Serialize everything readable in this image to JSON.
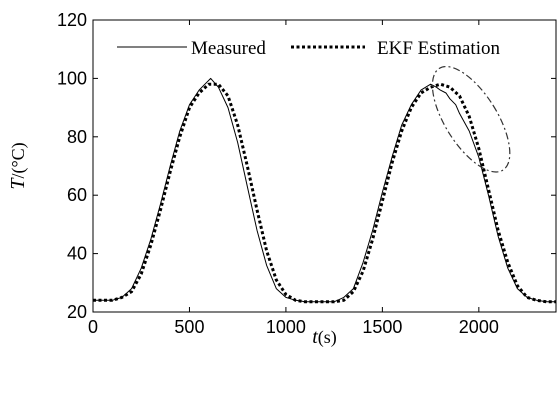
{
  "chart_data": {
    "type": "line",
    "title": "",
    "xlabel_var": "t",
    "xlabel_unit": "(s)",
    "ylabel_var": "T",
    "ylabel_unit": "/(°C)",
    "xlim": [
      0,
      2400
    ],
    "ylim": [
      20,
      120
    ],
    "xticks": [
      0,
      500,
      1000,
      1500,
      2000
    ],
    "yticks": [
      20,
      40,
      60,
      80,
      100,
      120
    ],
    "xtick_labels": [
      "0",
      "500",
      "1000",
      "1500",
      "2000"
    ],
    "ytick_labels": [
      "20",
      "40",
      "60",
      "80",
      "100",
      "120"
    ],
    "grid": false,
    "legend_position": "top",
    "series": [
      {
        "name": "Measured",
        "style": "solid",
        "color": "#000000",
        "x": [
          0,
          100,
          150,
          200,
          250,
          300,
          350,
          400,
          450,
          500,
          550,
          580,
          610,
          650,
          700,
          750,
          800,
          850,
          900,
          950,
          1000,
          1050,
          1100,
          1150,
          1200,
          1250,
          1300,
          1350,
          1400,
          1450,
          1500,
          1550,
          1600,
          1650,
          1700,
          1750,
          1780,
          1800,
          1830,
          1850,
          1880,
          1900,
          1950,
          2000,
          2050,
          2100,
          2150,
          2200,
          2250,
          2300,
          2350,
          2400
        ],
        "y": [
          24,
          24,
          25,
          28,
          35,
          45,
          57,
          70,
          82,
          91,
          96,
          98,
          100,
          97,
          90,
          78,
          63,
          48,
          36,
          28,
          25,
          24,
          23.5,
          23.5,
          23.5,
          23.5,
          25,
          28,
          37,
          48,
          61,
          73,
          84,
          91,
          96,
          98,
          97,
          96,
          95,
          93,
          91,
          88,
          82,
          73,
          60,
          46,
          35,
          28,
          25,
          24,
          23.5,
          23.5
        ]
      },
      {
        "name": "EKF Estimation",
        "style": "dotted",
        "color": "#000000",
        "x": [
          0,
          100,
          150,
          200,
          250,
          300,
          350,
          400,
          450,
          500,
          550,
          600,
          650,
          700,
          750,
          800,
          850,
          900,
          950,
          1000,
          1050,
          1100,
          1150,
          1200,
          1250,
          1300,
          1350,
          1400,
          1450,
          1500,
          1550,
          1600,
          1650,
          1700,
          1750,
          1800,
          1850,
          1900,
          1950,
          2000,
          2050,
          2100,
          2150,
          2200,
          2250,
          2300,
          2350,
          2400
        ],
        "y": [
          24,
          24,
          25,
          27,
          33,
          43,
          55,
          68,
          80,
          90,
          95,
          98,
          98,
          94,
          84,
          70,
          55,
          41,
          31,
          26,
          24,
          23.5,
          23.5,
          23.5,
          23.5,
          24,
          27,
          34,
          45,
          58,
          71,
          82,
          90,
          95,
          97,
          98,
          97,
          94,
          87,
          76,
          62,
          48,
          37,
          29,
          25,
          24,
          23.5,
          23.5
        ]
      }
    ],
    "annotations": [
      {
        "type": "dash-dot ellipse",
        "x_center": 1960,
        "y_center": 86,
        "note": ""
      }
    ]
  }
}
